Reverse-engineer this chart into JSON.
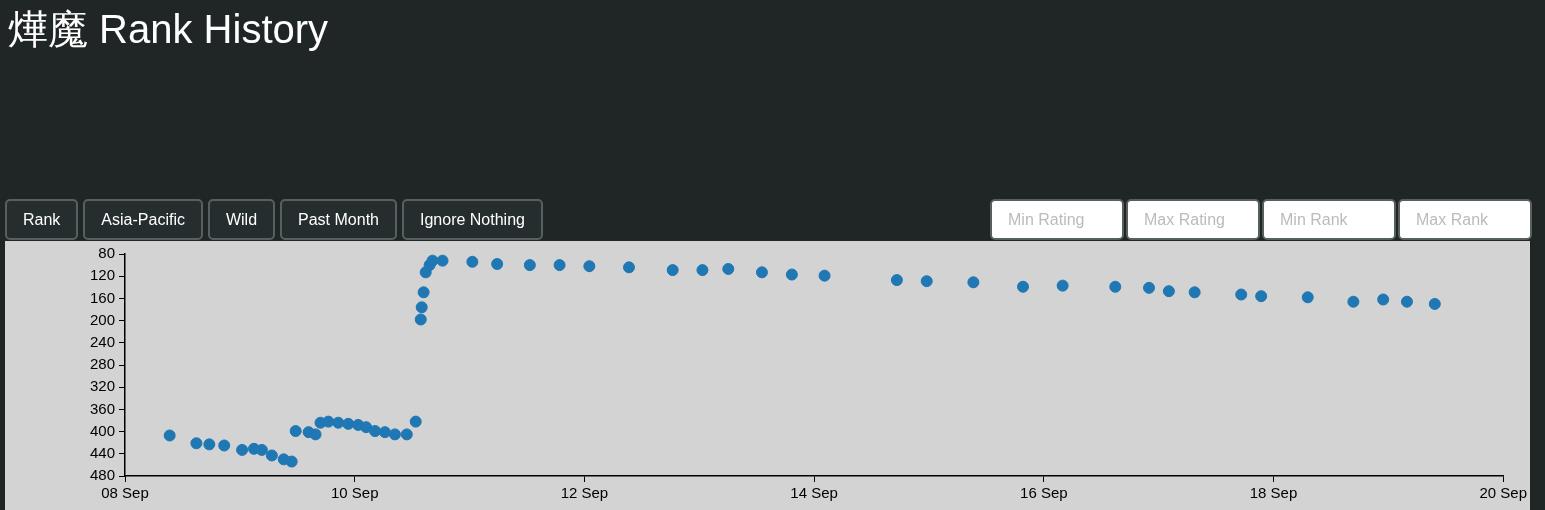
{
  "chart_data": {
    "type": "scatter",
    "title": "燁魔 Rank History",
    "annotations": [
      "Rank",
      "Asia-Pacific",
      "Wild",
      "Past Month",
      "Ignore Nothing",
      "Min Rating",
      "Max Rating",
      "Min Rank",
      "Max Rank"
    ],
    "series": [
      {
        "color": "#1f77b4",
        "x": [
          "--09-08T09:20",
          "--09-08T14:55",
          "--09-08T17:37",
          "--09-08T20:44",
          "--09-09T00:28",
          "--09-09T02:57",
          "--09-09T04:36",
          "--09-09T06:41",
          "--09-09T09:10",
          "--09-09T10:50",
          "--09-09T11:40",
          "--09-09T14:22",
          "--09-09T15:49",
          "--09-09T16:51",
          "--09-09T18:30",
          "--09-09T20:34",
          "--09-09T22:39",
          "--09-10T00:43",
          "--09-10T02:23",
          "--09-10T04:15",
          "--09-10T06:19",
          "--09-10T08:24",
          "--09-10T10:53",
          "--09-10T12:45",
          "--09-10T13:48",
          "--09-10T14:00",
          "--09-10T14:24",
          "--09-10T14:50",
          "--09-10T15:39",
          "--09-10T16:16",
          "--09-10T18:21",
          "--09-11T00:35",
          "--09-11T05:46",
          "--09-11T12:36",
          "--09-11T18:49",
          "--09-12T01:02",
          "--09-12T09:19",
          "--09-12T18:27",
          "--09-13T00:40",
          "--09-13T06:04",
          "--09-13T13:06",
          "--09-13T19:21",
          "--09-14T02:11",
          "--09-14T17:18",
          "--09-14T23:32",
          "--09-15T09:17",
          "--09-15T19:39",
          "--09-16T03:56",
          "--09-16T14:56",
          "--09-16T21:59",
          "--09-17T02:08",
          "--09-17T07:31",
          "--09-17T17:15",
          "--09-17T21:25",
          "--09-18T07:09",
          "--09-18T16:41",
          "--09-18T22:55",
          "--09-19T03:53",
          "--09-19T09:42"
        ],
        "values": [
          407,
          421,
          423,
          425,
          433,
          431,
          433,
          443,
          450,
          454,
          399,
          401,
          405,
          384,
          382,
          384,
          386,
          388,
          392,
          399,
          401,
          405,
          405,
          382,
          198,
          176,
          149,
          113,
          100,
          92,
          92,
          94,
          98,
          100,
          100,
          102,
          104,
          109,
          109,
          107,
          113,
          117,
          119,
          127,
          129,
          131,
          139,
          137,
          139,
          141,
          147,
          149,
          153,
          156,
          158,
          166,
          162,
          166,
          170
        ]
      }
    ],
    "xlim": [
      "--09-08",
      "--09-20"
    ],
    "xticks": [
      {
        "value": "--09-08",
        "label": "08 Sep"
      },
      {
        "value": "--09-10",
        "label": "10 Sep"
      },
      {
        "value": "--09-12",
        "label": "12 Sep"
      },
      {
        "value": "--09-14",
        "label": "14 Sep"
      },
      {
        "value": "--09-16",
        "label": "16 Sep"
      },
      {
        "value": "--09-18",
        "label": "18 Sep"
      },
      {
        "value": "--09-20",
        "label": "20 Sep"
      }
    ],
    "ylim": [
      480,
      80
    ],
    "yticks": [
      80,
      120,
      160,
      200,
      240,
      280,
      320,
      360,
      400,
      440,
      480
    ],
    "marker": "circle",
    "grid": false,
    "legend": false
  }
}
